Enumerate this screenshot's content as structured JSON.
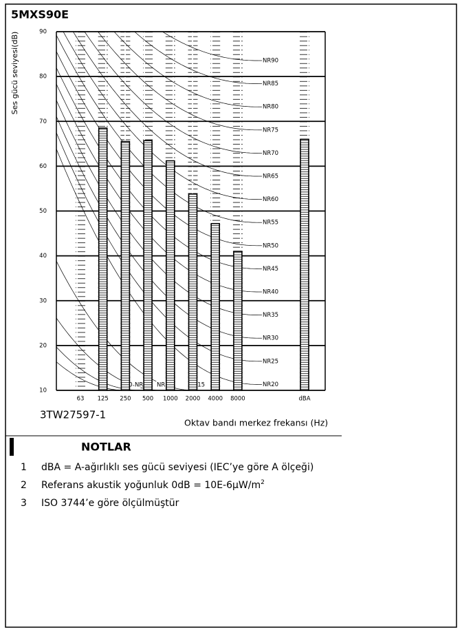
{
  "chart_data": {
    "type": "bar",
    "title": "5MXS90E",
    "y_label": "Ses gücü seviyesi(dB)",
    "x_label": "Oktav bandı merkez frekansı (Hz)",
    "code": "3TW27597-1",
    "categories": [
      "63",
      "125",
      "250",
      "500",
      "1000",
      "2000",
      "4000",
      "8000",
      "dBA"
    ],
    "values": [
      null,
      68.5,
      65.5,
      65.7,
      61.2,
      53.8,
      47.2,
      41,
      66
    ],
    "color": "#ffffff",
    "ylim": [
      10,
      90
    ],
    "yticks": [
      10,
      20,
      30,
      40,
      50,
      60,
      70,
      80,
      90
    ],
    "grid": true,
    "nr_curves_right": [
      "NR90",
      "NR85",
      "NR80",
      "NR75",
      "NR70",
      "NR65",
      "NR60",
      "NR55",
      "NR50",
      "NR45",
      "NR40",
      "NR35",
      "NR30",
      "NR25",
      "NR20"
    ],
    "nr_curves_bottom": [
      "NR0",
      "NR5",
      "NR10",
      "NR15"
    ]
  },
  "notes": {
    "heading": "NOTLAR",
    "items": [
      {
        "number": "1",
        "text": "dBA = A-ağırlıklı ses gücü seviyesi (IEC’ye göre A ölçeği)"
      },
      {
        "number": "2",
        "text": "Referans akustik yoğunluk 0dB = 10E-6μW/m",
        "superscript": "2"
      },
      {
        "number": "3",
        "text": "ISO 3744’e göre ölçülmüştür"
      }
    ]
  }
}
